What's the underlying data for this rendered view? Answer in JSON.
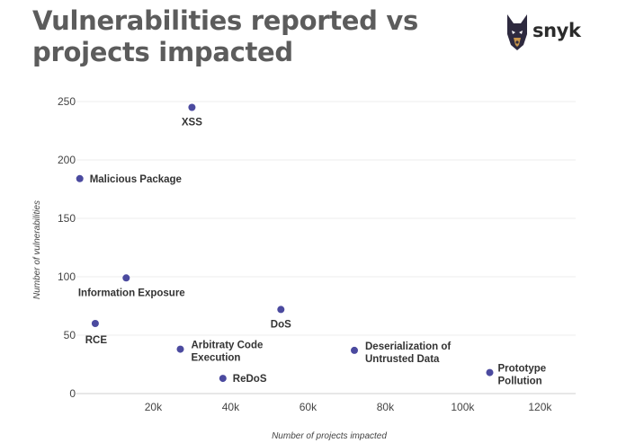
{
  "header": {
    "title_line1": "Vulnerabilities reported vs",
    "title_line2": "projects impacted",
    "logo_text": "snyk"
  },
  "colors": {
    "point": "#4b4a9f",
    "title": "#5c5c5c",
    "grid": "#ececec"
  },
  "chart_data": {
    "type": "scatter",
    "xlabel": "Number of projects impacted",
    "ylabel": "Number of vulnerabilities",
    "xlim": [
      0,
      130000
    ],
    "ylim": [
      0,
      250
    ],
    "xticks": [
      "20k",
      "40k",
      "60k",
      "80k",
      "100k",
      "120k"
    ],
    "xtick_values": [
      20000,
      40000,
      60000,
      80000,
      100000,
      120000
    ],
    "yticks": [
      "0",
      "50",
      "100",
      "150",
      "200",
      "250"
    ],
    "ytick_values": [
      0,
      50,
      100,
      150,
      200,
      250
    ],
    "grid": true,
    "points": [
      {
        "label": "XSS",
        "x": 30000,
        "y": 245
      },
      {
        "label": "Malicious Package",
        "x": 1000,
        "y": 184
      },
      {
        "label": "Information Exposure",
        "x": 13000,
        "y": 99
      },
      {
        "label": "RCE",
        "x": 5000,
        "y": 60
      },
      {
        "label": "DoS",
        "x": 53000,
        "y": 72
      },
      {
        "label": "Arbitraty Code Execution",
        "x": 27000,
        "y": 38
      },
      {
        "label": "ReDoS",
        "x": 38000,
        "y": 13
      },
      {
        "label": "Deserialization of Untrusted Data",
        "x": 72000,
        "y": 37
      },
      {
        "label": "Prototype Pollution",
        "x": 107000,
        "y": 18
      }
    ]
  }
}
